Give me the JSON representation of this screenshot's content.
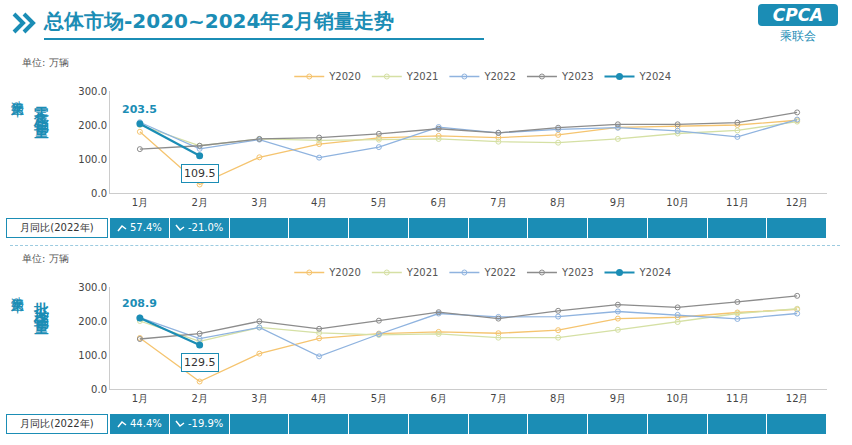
{
  "header": {
    "title": "总体市场-2020~2024年2月销量走势",
    "logo": "CPCA",
    "logo_subtitle": "乘联会"
  },
  "chart_data": [
    {
      "type": "line",
      "side_label": "狭义乘用车",
      "metric_label": "零售销量",
      "unit": "单位: 万辆",
      "categories": [
        "1月",
        "2月",
        "3月",
        "4月",
        "5月",
        "6月",
        "7月",
        "8月",
        "9月",
        "10月",
        "11月",
        "12月"
      ],
      "ylim": [
        0,
        300
      ],
      "yticks": [
        {
          "value": 0,
          "label": "0.0"
        },
        {
          "value": 100,
          "label": "100.0"
        },
        {
          "value": 200,
          "label": "200.0"
        },
        {
          "value": 300,
          "label": "300.0"
        }
      ],
      "grid": false,
      "legend": "top",
      "series": [
        {
          "name": "Y2020",
          "color": "#f5c46f",
          "marker": "circle-open",
          "values": [
            180,
            25,
            105,
            144,
            162,
            168,
            163,
            171,
            193,
            196,
            200,
            214
          ]
        },
        {
          "name": "Y2021",
          "color": "#d5e0a4",
          "marker": "circle-open",
          "values": [
            200,
            139,
            159,
            155,
            157,
            159,
            151,
            148,
            159,
            175,
            184,
            210
          ]
        },
        {
          "name": "Y2022",
          "color": "#8fb3df",
          "marker": "circle-open",
          "values": [
            208,
            130,
            157,
            104,
            135,
            194,
            177,
            187,
            192,
            183,
            165,
            216
          ]
        },
        {
          "name": "Y2023",
          "color": "#8c8c8c",
          "marker": "circle-open",
          "values": [
            129,
            139,
            159,
            163,
            174,
            189,
            177,
            192,
            202,
            202,
            207,
            237
          ]
        },
        {
          "name": "Y2024",
          "color": "#1b8db5",
          "marker": "circle",
          "data_labels": true,
          "values": [
            203.5,
            109.5,
            null,
            null,
            null,
            null,
            null,
            null,
            null,
            null,
            null,
            null
          ]
        }
      ],
      "growth": {
        "label": "月同比(2022年)",
        "categories": [
          "1月",
          "2月"
        ],
        "values": [
          57.4,
          -21.0
        ],
        "value_labels": [
          "57.4%",
          "-21.0%"
        ]
      }
    },
    {
      "type": "line",
      "side_label": "狭义乘用车",
      "metric_label": "批发销量",
      "unit": "单位: 万辆",
      "categories": [
        "1月",
        "2月",
        "3月",
        "4月",
        "5月",
        "6月",
        "7月",
        "8月",
        "9月",
        "10月",
        "11月",
        "12月"
      ],
      "ylim": [
        0,
        300
      ],
      "yticks": [
        {
          "value": 0,
          "label": "0.0"
        },
        {
          "value": 100,
          "label": "100.0"
        },
        {
          "value": 200,
          "label": "200.0"
        },
        {
          "value": 300,
          "label": "300.0"
        }
      ],
      "grid": false,
      "legend": "top",
      "series": [
        {
          "name": "Y2020",
          "color": "#f5c46f",
          "marker": "circle-open",
          "values": [
            150,
            22,
            104,
            149,
            163,
            168,
            164,
            173,
            207,
            211,
            225,
            234
          ]
        },
        {
          "name": "Y2021",
          "color": "#d5e0a4",
          "marker": "circle-open",
          "values": [
            200,
            140,
            181,
            165,
            159,
            162,
            151,
            151,
            174,
            197,
            222,
            236
          ]
        },
        {
          "name": "Y2022",
          "color": "#8fb3df",
          "marker": "circle-open",
          "values": [
            210,
            148,
            181,
            96,
            161,
            222,
            212,
            213,
            228,
            218,
            206,
            222
          ]
        },
        {
          "name": "Y2023",
          "color": "#8c8c8c",
          "marker": "circle-open",
          "values": [
            147,
            163,
            199,
            177,
            201,
            226,
            207,
            230,
            248,
            240,
            256,
            274
          ]
        },
        {
          "name": "Y2024",
          "color": "#1b8db5",
          "marker": "circle",
          "data_labels": true,
          "values": [
            208.9,
            129.5,
            null,
            null,
            null,
            null,
            null,
            null,
            null,
            null,
            null,
            null
          ]
        }
      ],
      "growth": {
        "label": "月同比(2022年)",
        "categories": [
          "1月",
          "2月"
        ],
        "values": [
          44.4,
          -19.9
        ],
        "value_labels": [
          "44.4%",
          "-19.9%"
        ]
      }
    }
  ]
}
